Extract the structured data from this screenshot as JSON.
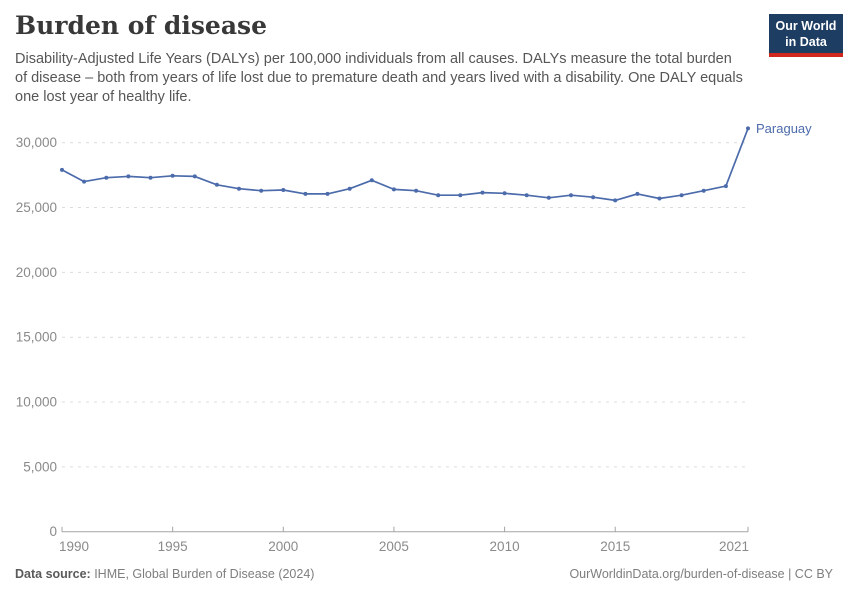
{
  "header": {
    "title": "Burden of disease",
    "logo_line1": "Our World",
    "logo_line2": "in Data"
  },
  "subtitle": "Disability-Adjusted Life Years (DALYs) per 100,000 individuals from all causes. DALYs measure the total burden of disease – both from years of life lost due to premature death and years lived with a disability. One DALY equals one lost year of healthy life.",
  "chart_data": {
    "type": "line",
    "title": "Burden of disease",
    "entity_label": "Paraguay",
    "x": [
      1990,
      1991,
      1992,
      1993,
      1994,
      1995,
      1996,
      1997,
      1998,
      1999,
      2000,
      2001,
      2002,
      2003,
      2004,
      2005,
      2006,
      2007,
      2008,
      2009,
      2010,
      2011,
      2012,
      2013,
      2014,
      2015,
      2016,
      2017,
      2018,
      2019,
      2020,
      2021
    ],
    "series": [
      {
        "name": "Paraguay",
        "values": [
          27900,
          27000,
          27300,
          27400,
          27300,
          27450,
          27400,
          26750,
          26450,
          26300,
          26350,
          26050,
          26050,
          26450,
          27100,
          26400,
          26300,
          25950,
          25950,
          26150,
          26100,
          25950,
          25750,
          25950,
          25800,
          25550,
          26050,
          25700,
          25950,
          26300,
          26650,
          31100
        ]
      }
    ],
    "x_ticks": [
      1990,
      1995,
      2000,
      2005,
      2010,
      2015,
      2021
    ],
    "y_ticks": [
      0,
      5000,
      10000,
      15000,
      20000,
      25000,
      30000
    ],
    "xlim": [
      1990,
      2021
    ],
    "ylim": [
      0,
      30000
    ],
    "xlabel": "",
    "ylabel": "",
    "grid": "horizontal-dashed",
    "legend_position": "end-of-line",
    "line_color": "#4c6bab",
    "grid_color": "#dcdcdc",
    "axis_color": "#a5a5a5",
    "tick_label_color": "#8a8a8a"
  },
  "footer": {
    "source_label": "Data source:",
    "source_text": " IHME, Global Burden of Disease (2024)",
    "link": "OurWorldinData.org/burden-of-disease | CC BY"
  }
}
